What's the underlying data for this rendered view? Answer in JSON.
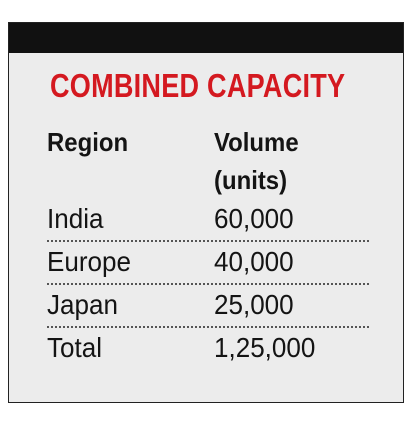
{
  "title": "COMBINED CAPACITY",
  "colors": {
    "title": "#d41920",
    "top_bar": "#111111",
    "background": "#ececec",
    "text": "#141414"
  },
  "table": {
    "headers": {
      "region": "Region",
      "volume_line1": "Volume",
      "volume_line2": "(units)"
    },
    "rows": [
      {
        "region": "India",
        "volume": "60,000"
      },
      {
        "region": "Europe",
        "volume": "40,000"
      },
      {
        "region": "Japan",
        "volume": "25,000"
      },
      {
        "region": "Total",
        "volume": "1,25,000"
      }
    ]
  }
}
